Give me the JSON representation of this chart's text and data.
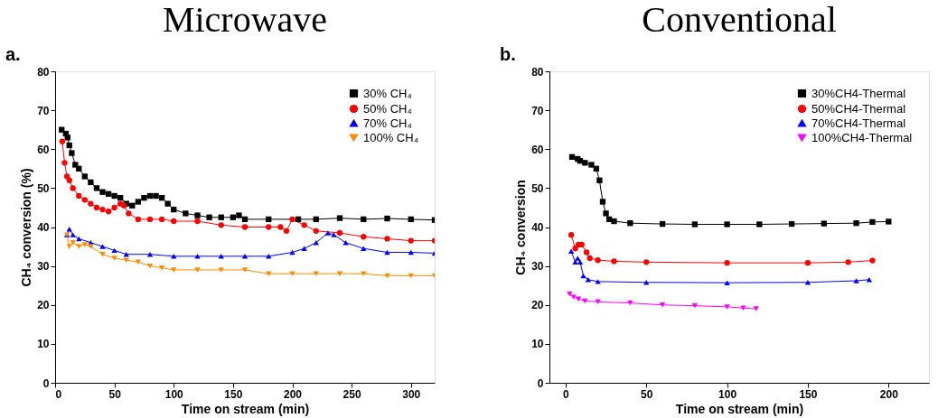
{
  "chart_data": [
    {
      "type": "line",
      "title": "Microwave",
      "annotations": [
        "a."
      ],
      "xlabel": "Time on stream (min)",
      "ylabel": "CH₄ conversion (%)",
      "xlim": [
        0,
        320
      ],
      "ylim": [
        0,
        80
      ],
      "xticks": [
        0,
        50,
        100,
        150,
        200,
        250,
        300
      ],
      "yticks": [
        0,
        10,
        20,
        30,
        40,
        50,
        60,
        70,
        80
      ],
      "legend": "top right",
      "grid": false,
      "series": [
        {
          "name": "30% CH₄",
          "color": "#000000",
          "marker": "square",
          "x": [
            5.5,
            9,
            10.5,
            12,
            14,
            17,
            20,
            25,
            30,
            35,
            40,
            45,
            50,
            55,
            60,
            65,
            70,
            75,
            80,
            85,
            90,
            95,
            100,
            110,
            120,
            130,
            140,
            150,
            155,
            160,
            180,
            205,
            220,
            240,
            260,
            280,
            300,
            320
          ],
          "values": [
            65,
            64,
            63,
            61,
            59,
            56,
            55,
            53,
            51.5,
            50,
            49,
            48.5,
            48,
            47.5,
            46,
            45.5,
            46.5,
            47.5,
            48,
            48,
            47.5,
            46,
            44.5,
            43.5,
            43,
            42.5,
            42.5,
            42.5,
            43,
            42,
            42,
            42,
            42,
            42.3,
            42,
            42.2,
            42,
            41.8
          ]
        },
        {
          "name": "50% CH₄",
          "color": "#ff0000",
          "marker": "circle",
          "x": [
            6,
            8,
            10,
            12,
            15,
            20,
            25,
            30,
            35,
            40,
            45,
            50,
            55,
            58,
            62,
            70,
            80,
            90,
            100,
            120,
            140,
            160,
            180,
            190,
            195,
            200,
            210,
            220,
            240,
            260,
            280,
            300,
            320
          ],
          "values": [
            62,
            56.5,
            53,
            52,
            50,
            48,
            47,
            46,
            45,
            44.5,
            44,
            45,
            46,
            45.5,
            43.5,
            42,
            42,
            42,
            41.5,
            41.5,
            40.5,
            40,
            40,
            40,
            39,
            42,
            40.5,
            39,
            38.5,
            37.5,
            37,
            36.5,
            36.5
          ]
        },
        {
          "name": "70% CH₄",
          "color": "#0000ff",
          "marker": "triangle",
          "x": [
            10,
            12,
            15,
            20,
            30,
            40,
            50,
            60,
            80,
            100,
            120,
            140,
            160,
            180,
            200,
            210,
            220,
            230,
            235,
            245,
            260,
            280,
            300,
            320
          ],
          "values": [
            38,
            39.5,
            38,
            37,
            36,
            35,
            34,
            33,
            33,
            32.5,
            32.5,
            32.5,
            32.5,
            32.5,
            33.5,
            34.5,
            36,
            38.5,
            38,
            36,
            34.5,
            33.5,
            33.5,
            33.3
          ]
        },
        {
          "name": "100% CH₄",
          "color": "#ff8c00",
          "marker": "triangle-down",
          "x": [
            10,
            12,
            15,
            20,
            25,
            30,
            40,
            50,
            60,
            70,
            80,
            90,
            100,
            120,
            140,
            160,
            180,
            200,
            220,
            240,
            260,
            280,
            300,
            320
          ],
          "values": [
            38,
            35,
            36,
            35,
            35.5,
            35,
            33,
            32,
            31.5,
            31,
            30,
            29.5,
            29,
            29,
            29,
            29,
            28,
            28,
            28,
            28,
            28,
            27.5,
            27.5,
            27.5
          ]
        }
      ]
    },
    {
      "type": "line",
      "title": "Conventional",
      "annotations": [
        "b."
      ],
      "xlabel": "Time on stream (min)",
      "ylabel": "CH₄ conversion",
      "xlim": [
        -10,
        225
      ],
      "ylim": [
        0,
        80
      ],
      "xticks": [
        0,
        50,
        100,
        150,
        200
      ],
      "yticks": [
        0,
        10,
        20,
        30,
        40,
        50,
        60,
        70,
        80
      ],
      "legend": "top right",
      "grid": false,
      "series": [
        {
          "name": "30%CH4-Thermal",
          "color": "#000000",
          "marker": "square",
          "x": [
            4,
            7.5,
            9,
            12,
            16,
            19,
            21,
            23,
            25,
            27,
            30,
            40,
            60,
            80,
            100,
            120,
            140,
            160,
            180,
            190,
            200
          ],
          "values": [
            58,
            57.5,
            57,
            56.5,
            56,
            55,
            52,
            46.5,
            43.5,
            42,
            41.5,
            41,
            40.8,
            40.7,
            40.7,
            40.7,
            40.8,
            40.9,
            41,
            41.3,
            41.4
          ]
        },
        {
          "name": "50%CH4-Thermal",
          "color": "#ff0000",
          "marker": "circle",
          "x": [
            3.5,
            6,
            8,
            10,
            13,
            15,
            20,
            30,
            50,
            100,
            150,
            175,
            190
          ],
          "values": [
            38,
            34.5,
            35.5,
            35.5,
            33.5,
            32,
            31.5,
            31.2,
            31,
            30.8,
            30.8,
            31,
            31.4
          ]
        },
        {
          "name": "70%CH4-Thermal",
          "color": "#0000ff",
          "marker": "triangle",
          "x": [
            3.5,
            6,
            7.5,
            9,
            11,
            14,
            20,
            50,
            100,
            150,
            180,
            188
          ],
          "values": [
            33.8,
            31,
            32,
            31,
            27.5,
            26.5,
            26,
            25.8,
            25.7,
            25.8,
            26.2,
            26.5
          ]
        },
        {
          "name": "100%CH4-Thermal",
          "color": "#ff00ff",
          "marker": "triangle-down",
          "x": [
            2.5,
            5,
            8,
            12,
            20,
            40,
            60,
            80,
            100,
            110,
            118
          ],
          "values": [
            22.8,
            22,
            21.5,
            21,
            20.8,
            20.5,
            20,
            19.8,
            19.5,
            19.2,
            19
          ]
        }
      ]
    }
  ]
}
